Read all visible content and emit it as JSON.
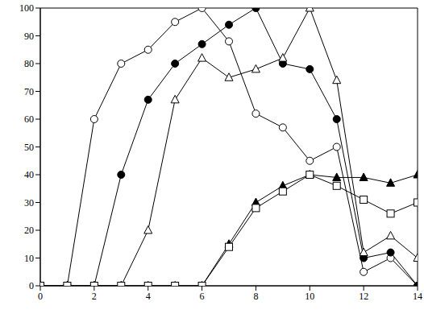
{
  "chart_data": {
    "type": "line",
    "x": [
      0,
      1,
      2,
      3,
      4,
      5,
      6,
      7,
      8,
      9,
      10,
      11,
      12,
      13,
      14
    ],
    "series": [
      {
        "color": "#000000",
        "marker": "open_circle",
        "values": [
          0,
          0,
          60,
          80,
          85,
          95,
          100,
          88,
          62,
          57,
          45,
          50,
          5,
          10,
          0
        ]
      },
      {
        "color": "#000000",
        "marker": "filled_circle",
        "values": [
          0,
          0,
          0,
          40,
          67,
          80,
          87,
          94,
          100,
          80,
          78,
          60,
          10,
          12,
          0
        ]
      },
      {
        "color": "#000000",
        "marker": "open_triangle",
        "values": [
          0,
          0,
          0,
          0,
          20,
          67,
          82,
          75,
          78,
          82,
          100,
          74,
          12,
          18,
          10
        ]
      },
      {
        "color": "#000000",
        "marker": "filled_triangle",
        "values": [
          0,
          0,
          0,
          0,
          0,
          0,
          0,
          15,
          30,
          36,
          40,
          39,
          39,
          37,
          40
        ]
      },
      {
        "color": "#000000",
        "marker": "open_square",
        "values": [
          0,
          0,
          0,
          0,
          0,
          0,
          0,
          14,
          28,
          34,
          40,
          36,
          31,
          26,
          30
        ]
      }
    ],
    "xlim": [
      0,
      14
    ],
    "xticks": [
      0,
      2,
      4,
      6,
      8,
      10,
      12,
      14
    ],
    "ylim": [
      0,
      100
    ],
    "yticks": [
      0,
      10,
      20,
      30,
      40,
      50,
      60,
      70,
      80,
      90,
      100
    ],
    "grid": false
  }
}
